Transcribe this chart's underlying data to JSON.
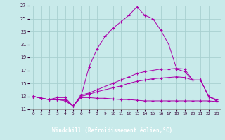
{
  "title": "",
  "xlabel": "Windchill (Refroidissement éolien,°C)",
  "xlim": [
    -0.5,
    23.5
  ],
  "ylim": [
    11,
    27
  ],
  "xticks": [
    0,
    1,
    2,
    3,
    4,
    5,
    6,
    7,
    8,
    9,
    10,
    11,
    12,
    13,
    14,
    15,
    16,
    17,
    18,
    19,
    20,
    21,
    22,
    23
  ],
  "yticks": [
    11,
    13,
    15,
    17,
    19,
    21,
    23,
    25,
    27
  ],
  "bg_color": "#c8eaea",
  "grid_color": "#a8d0d0",
  "line_color": "#aa00aa",
  "xlabel_bg": "#7700aa",
  "xlabel_fg": "#ffffff",
  "line1_y": [
    13.0,
    12.7,
    12.5,
    12.8,
    12.8,
    11.5,
    13.0,
    17.5,
    20.3,
    22.2,
    23.5,
    24.5,
    25.5,
    26.8,
    25.5,
    25.0,
    23.2,
    21.0,
    17.2,
    16.8,
    15.5,
    15.5,
    13.0,
    12.3
  ],
  "line2_y": [
    13.0,
    12.7,
    12.5,
    12.5,
    12.5,
    11.5,
    13.2,
    13.5,
    14.0,
    14.5,
    15.0,
    15.5,
    16.0,
    16.5,
    16.8,
    17.0,
    17.2,
    17.2,
    17.3,
    17.2,
    15.5,
    15.5,
    13.0,
    12.5
  ],
  "line3_y": [
    13.0,
    12.7,
    12.5,
    12.5,
    12.5,
    11.5,
    13.0,
    13.3,
    13.7,
    14.0,
    14.3,
    14.6,
    15.0,
    15.3,
    15.5,
    15.7,
    15.8,
    15.9,
    16.0,
    15.9,
    15.5,
    15.5,
    13.0,
    12.3
  ],
  "line4_y": [
    13.0,
    12.7,
    12.5,
    12.5,
    12.3,
    11.5,
    12.8,
    12.8,
    12.7,
    12.7,
    12.6,
    12.5,
    12.5,
    12.4,
    12.3,
    12.3,
    12.3,
    12.3,
    12.3,
    12.3,
    12.3,
    12.3,
    12.3,
    12.2
  ]
}
